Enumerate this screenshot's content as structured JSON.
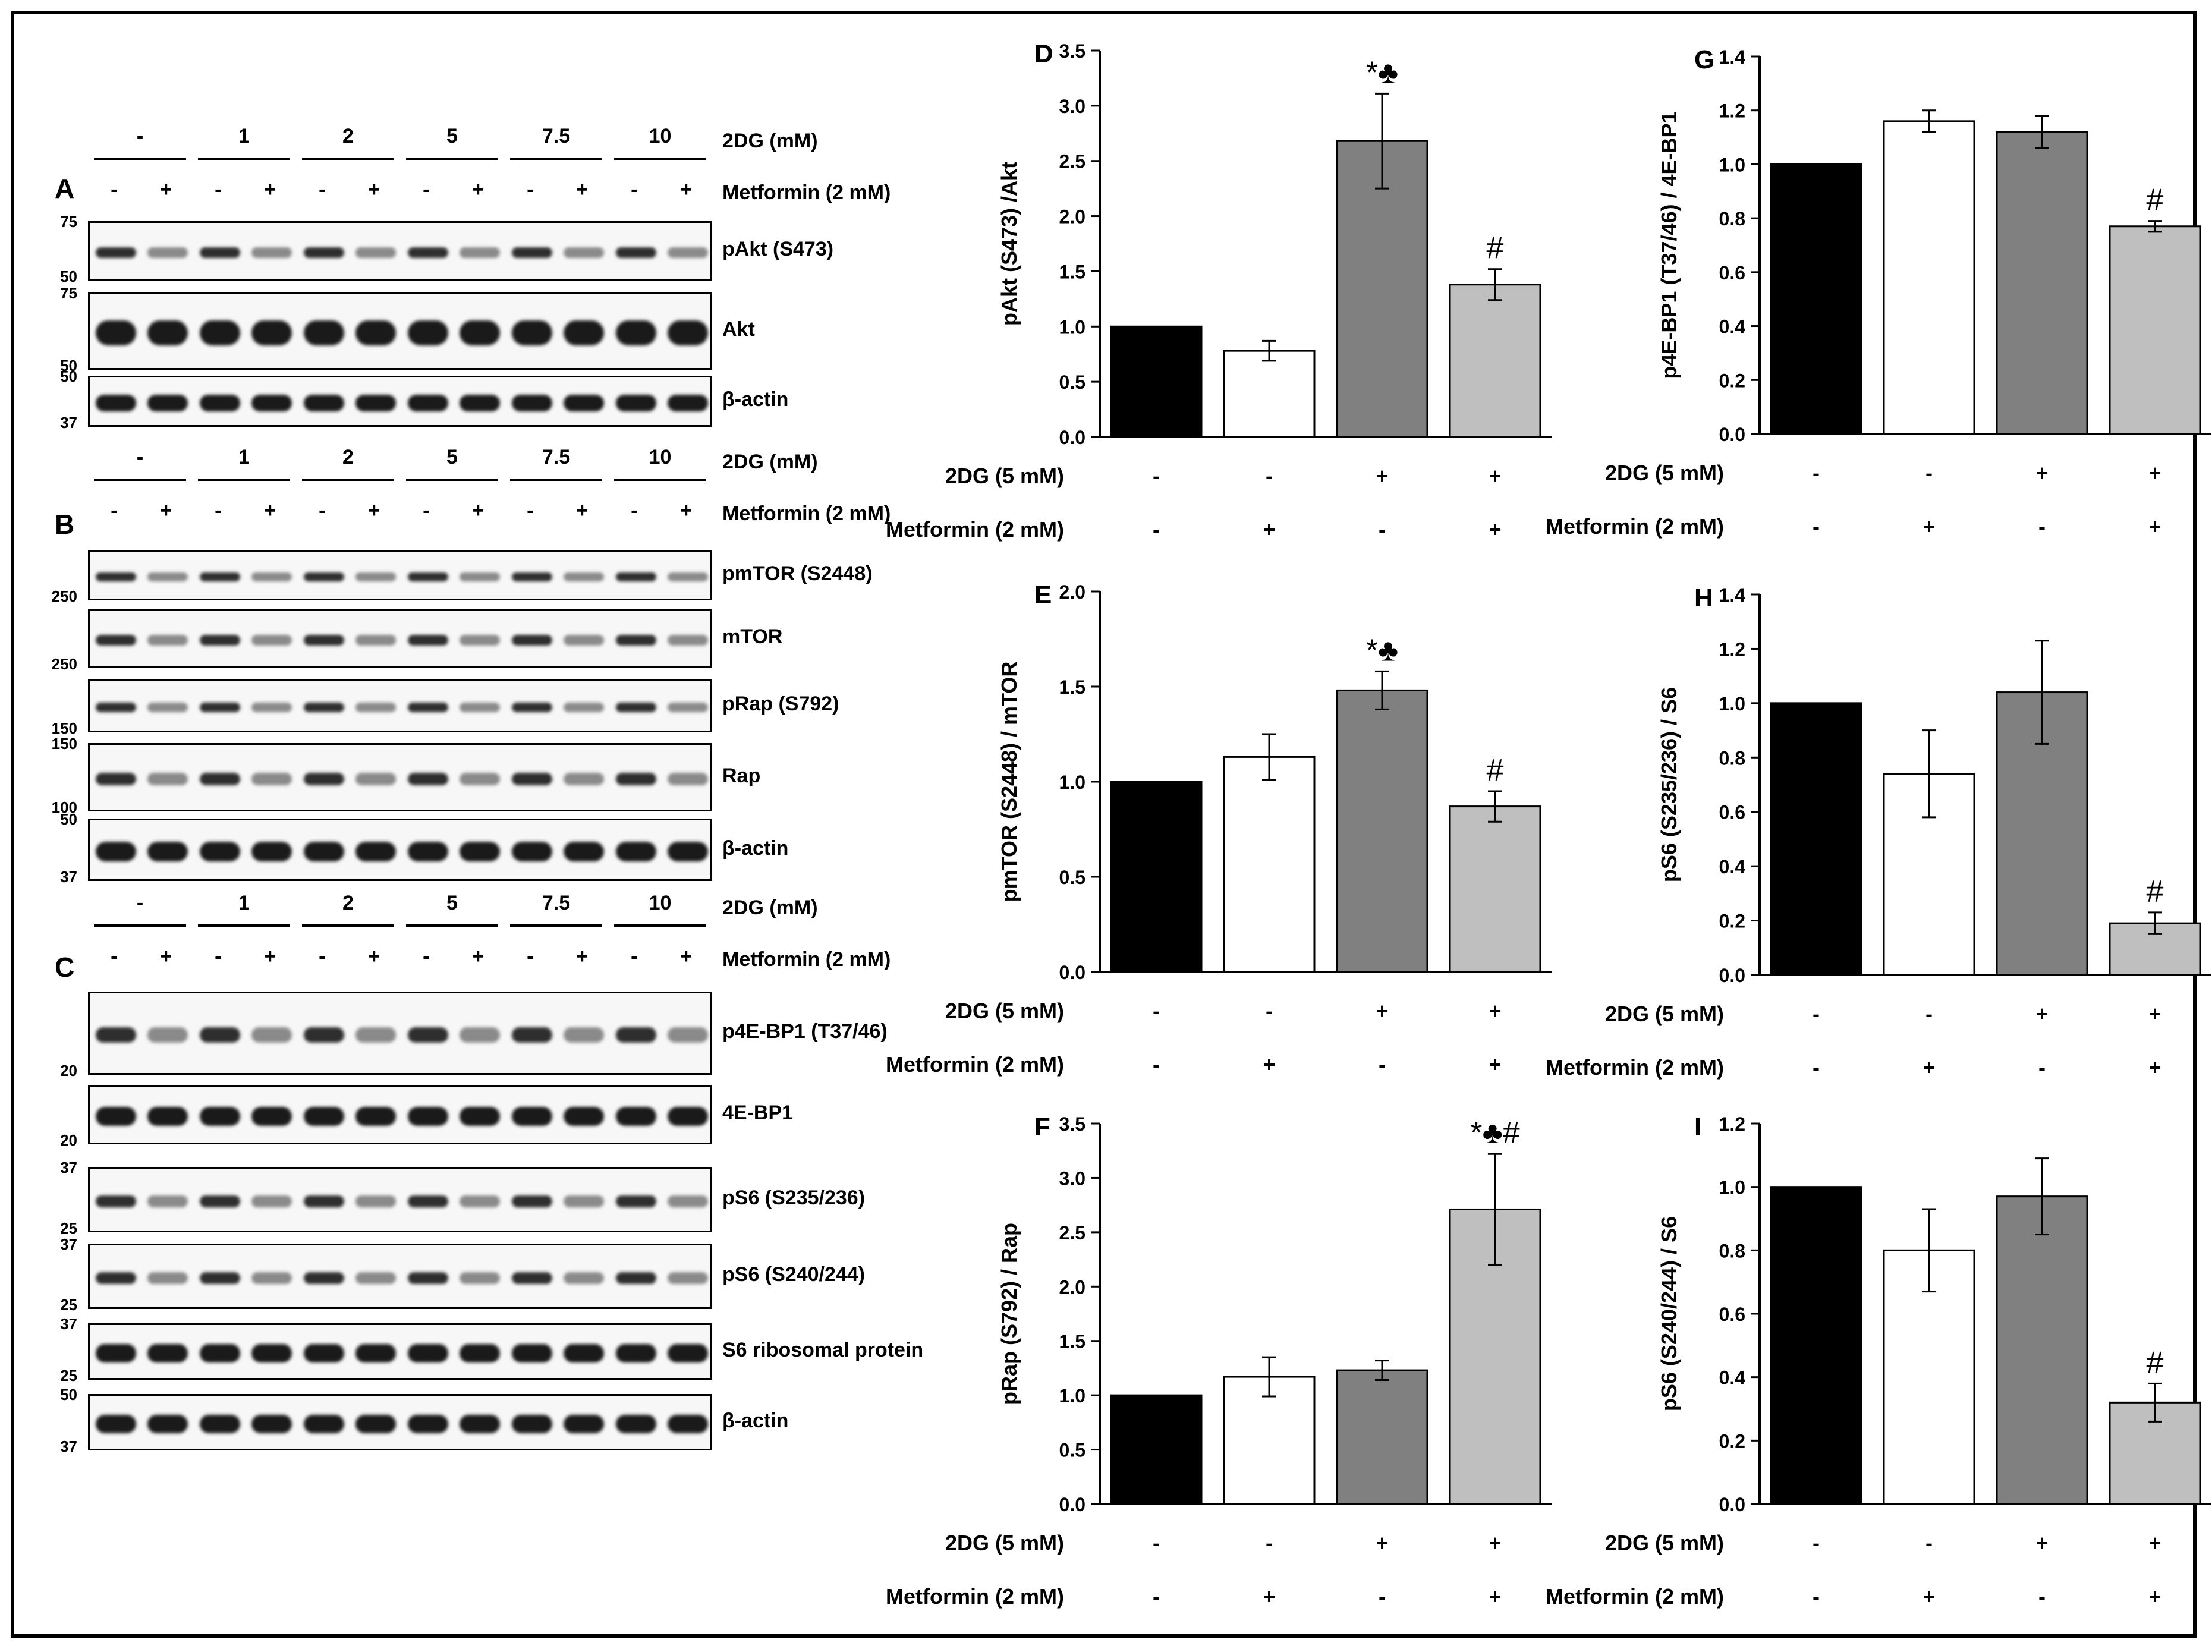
{
  "western_blots": {
    "lane_header": {
      "groups": [
        "-",
        "1",
        "2",
        "5",
        "7.5",
        "10"
      ],
      "group_label": "2DG (mM)",
      "metformin_pattern": [
        "-",
        "+",
        "-",
        "+",
        "-",
        "+",
        "-",
        "+",
        "-",
        "+",
        "-",
        "+"
      ],
      "metformin_label": "Metformin (2 mM)"
    },
    "panels": [
      {
        "letter": "A",
        "blots": [
          {
            "name": "pAkt (S473)",
            "mw_top": "75",
            "mw_bottom": "50"
          },
          {
            "name": "Akt",
            "mw_top": "75",
            "mw_bottom": "50"
          },
          {
            "name": "β-actin",
            "mw_top": "50",
            "mw_bottom": "37"
          }
        ]
      },
      {
        "letter": "B",
        "blots": [
          {
            "name": "pmTOR (S2448)",
            "mw_top": "",
            "mw_bottom": "250"
          },
          {
            "name": "mTOR",
            "mw_top": "",
            "mw_bottom": "250"
          },
          {
            "name": "pRap (S792)",
            "mw_top": "",
            "mw_bottom": "150"
          },
          {
            "name": "Rap",
            "mw_top": "150",
            "mw_bottom": "100"
          },
          {
            "name": "β-actin",
            "mw_top": "50",
            "mw_bottom": "37"
          }
        ]
      },
      {
        "letter": "C",
        "blots": [
          {
            "name": "p4E-BP1 (T37/46)",
            "mw_top": "",
            "mw_bottom": "20"
          },
          {
            "name": "4E-BP1",
            "mw_top": "",
            "mw_bottom": "20"
          },
          {
            "name": "pS6 (S235/236)",
            "mw_top": "37",
            "mw_bottom": "25"
          },
          {
            "name": "pS6 (S240/244)",
            "mw_top": "37",
            "mw_bottom": "25"
          },
          {
            "name": "S6 ribosomal protein",
            "mw_top": "37",
            "mw_bottom": "25"
          },
          {
            "name": "β-actin",
            "mw_top": "50",
            "mw_bottom": "37"
          }
        ]
      }
    ]
  },
  "condition_rows": {
    "dg_label": "2DG (5 mM)",
    "dg_values": [
      "-",
      "-",
      "+",
      "+"
    ],
    "met_label": "Metformin (2 mM)",
    "met_values": [
      "-",
      "+",
      "-",
      "+"
    ]
  },
  "colors": {
    "bar_fills": [
      "#000000",
      "#ffffff",
      "#808080",
      "#bfbfbf"
    ]
  },
  "chart_data": [
    {
      "letter": "D",
      "type": "bar",
      "ylabel": "pAkt (S473) /Akt",
      "ylim": [
        0,
        3.5
      ],
      "ticks": [
        "0.0",
        "0.5",
        "1.0",
        "1.5",
        "2.0",
        "2.5",
        "3.0",
        "3.5"
      ],
      "values": [
        1.0,
        0.78,
        2.68,
        1.38
      ],
      "errors": [
        0,
        0.09,
        0.43,
        0.14
      ],
      "annotations": [
        "",
        "",
        "*♣",
        "#"
      ]
    },
    {
      "letter": "E",
      "type": "bar",
      "ylabel": "pmTOR (S2448) / mTOR",
      "ylim": [
        0,
        2.0
      ],
      "ticks": [
        "0.0",
        "0.5",
        "1.0",
        "1.5",
        "2.0"
      ],
      "values": [
        1.0,
        1.13,
        1.48,
        0.87
      ],
      "errors": [
        0,
        0.12,
        0.1,
        0.08
      ],
      "annotations": [
        "",
        "",
        "*♣",
        "#"
      ]
    },
    {
      "letter": "F",
      "type": "bar",
      "ylabel": "pRap (S792) / Rap",
      "ylim": [
        0,
        3.5
      ],
      "ticks": [
        "0.0",
        "0.5",
        "1.0",
        "1.5",
        "2.0",
        "2.5",
        "3.0",
        "3.5"
      ],
      "values": [
        1.0,
        1.17,
        1.23,
        2.71
      ],
      "errors": [
        0,
        0.18,
        0.09,
        0.51
      ],
      "annotations": [
        "",
        "",
        "",
        "*♣#"
      ]
    },
    {
      "letter": "G",
      "type": "bar",
      "ylabel": "p4E-BP1 (T37/46) / 4E-BP1",
      "ylim": [
        0,
        1.4
      ],
      "ticks": [
        "0.0",
        "0.2",
        "0.4",
        "0.6",
        "0.8",
        "1.0",
        "1.2",
        "1.4"
      ],
      "values": [
        1.0,
        1.16,
        1.12,
        0.77
      ],
      "errors": [
        0,
        0.04,
        0.06,
        0.02
      ],
      "annotations": [
        "",
        "",
        "",
        "#"
      ]
    },
    {
      "letter": "H",
      "type": "bar",
      "ylabel": "pS6 (S235/236) / S6",
      "ylim": [
        0,
        1.4
      ],
      "ticks": [
        "0.0",
        "0.2",
        "0.4",
        "0.6",
        "0.8",
        "1.0",
        "1.2",
        "1.4"
      ],
      "values": [
        1.0,
        0.74,
        1.04,
        0.19
      ],
      "errors": [
        0,
        0.16,
        0.19,
        0.04
      ],
      "annotations": [
        "",
        "",
        "",
        "#"
      ]
    },
    {
      "letter": "I",
      "type": "bar",
      "ylabel": "pS6 (S240/244) / S6",
      "ylim": [
        0,
        1.2
      ],
      "ticks": [
        "0.0",
        "0.2",
        "0.4",
        "0.6",
        "0.8",
        "1.0",
        "1.2"
      ],
      "values": [
        1.0,
        0.8,
        0.97,
        0.32
      ],
      "errors": [
        0,
        0.13,
        0.12,
        0.06
      ],
      "annotations": [
        "",
        "",
        "",
        "#"
      ]
    }
  ]
}
